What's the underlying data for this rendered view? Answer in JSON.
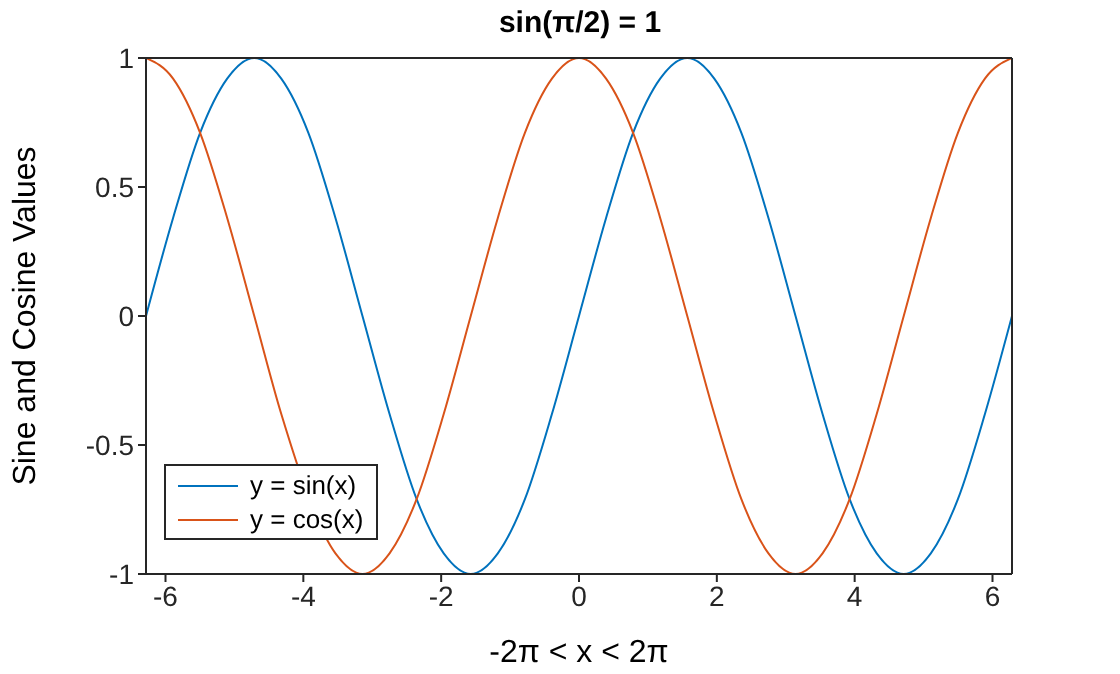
{
  "chart_data": {
    "type": "line",
    "title": "sin(π/2) = 1",
    "xlabel": "-2π < x < 2π",
    "ylabel": "Sine and Cosine Values",
    "x": [
      -6.283,
      -5.89,
      -5.498,
      -5.105,
      -4.712,
      -4.32,
      -3.927,
      -3.534,
      -3.142,
      -2.749,
      -2.356,
      -1.963,
      -1.571,
      -1.178,
      -0.785,
      -0.393,
      0,
      0.393,
      0.785,
      1.178,
      1.571,
      1.963,
      2.356,
      2.749,
      3.142,
      3.534,
      3.927,
      4.32,
      4.712,
      5.105,
      5.498,
      5.89,
      6.283
    ],
    "series": [
      {
        "name": "y = sin(x)",
        "color": "#0072bd",
        "values": [
          0,
          0.38,
          0.71,
          0.92,
          1,
          0.92,
          0.71,
          0.38,
          0,
          -0.38,
          -0.71,
          -0.92,
          -1,
          -0.92,
          -0.71,
          -0.38,
          0,
          0.38,
          0.71,
          0.92,
          1,
          0.92,
          0.71,
          0.38,
          0,
          -0.38,
          -0.71,
          -0.92,
          -1,
          -0.92,
          -0.71,
          -0.38,
          0
        ]
      },
      {
        "name": "y = cos(x)",
        "color": "#d95319",
        "values": [
          1,
          0.92,
          0.71,
          0.38,
          0,
          -0.38,
          null,
          -0.92,
          -1,
          -0.92,
          -0.71,
          -0.38,
          0,
          0.38,
          0.71,
          0.92,
          1,
          0.92,
          0.71,
          0.38,
          0,
          -0.38,
          -0.71,
          -0.92,
          -1,
          -0.92,
          -0.71,
          -0.38,
          0,
          0.38,
          0.71,
          0.92,
          1
        ]
      }
    ],
    "xlim": [
      -6.283,
      6.283
    ],
    "xticks": [
      -6,
      -4,
      -2,
      0,
      2,
      4,
      6
    ],
    "ylim": [
      -1,
      1
    ],
    "yticks": [
      -1,
      -0.5,
      0,
      0.5,
      1
    ],
    "legend": "bottom left",
    "marker": "none",
    "line_style": "solid"
  }
}
